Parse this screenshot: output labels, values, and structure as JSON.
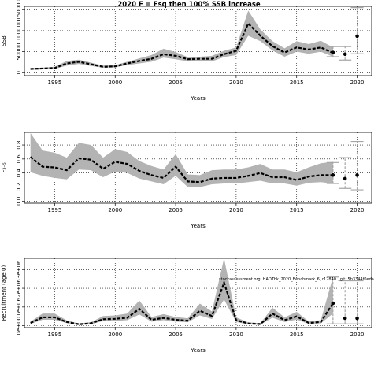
{
  "figure": {
    "title": "2020 F = Fsq then 100% SSB increase",
    "watermark": "stockassessment.org, HADTbk_2020_Benchmark_6, r12840 , git: 5b3344f0eda"
  },
  "colors": {
    "band": "#b3b3b3",
    "line": "#000000",
    "grid": "#000000",
    "forecast_bar": "#a6a6a6",
    "point": "#000000"
  },
  "chart_data": [
    {
      "type": "line",
      "name": "ssb",
      "ylabel": "SSB",
      "xlabel": "Years",
      "xlim": [
        1992.5,
        2021.2
      ],
      "ylim": [
        -7000,
        158000
      ],
      "xticks": [
        1995,
        2000,
        2005,
        2010,
        2015,
        2020
      ],
      "yticks": [
        0,
        50000,
        100000,
        150000
      ],
      "ytick_labels": [
        "0",
        "50000",
        "100000",
        "150000"
      ],
      "grid": true,
      "years": [
        1993,
        1994,
        1995,
        1996,
        1997,
        1998,
        1999,
        2000,
        2001,
        2002,
        2003,
        2004,
        2005,
        2006,
        2007,
        2008,
        2009,
        2010,
        2011,
        2012,
        2013,
        2014,
        2015,
        2016,
        2017,
        2018
      ],
      "estimate": [
        9000,
        10000,
        11000,
        22000,
        26000,
        20000,
        14000,
        15000,
        22000,
        28000,
        33000,
        44000,
        40000,
        32000,
        33000,
        33000,
        44000,
        52000,
        117000,
        88000,
        63000,
        48000,
        60000,
        55000,
        60000,
        47000
      ],
      "lower": [
        7000,
        8000,
        9000,
        17000,
        21000,
        16000,
        12000,
        13000,
        18000,
        22000,
        26000,
        36000,
        32000,
        27000,
        27000,
        27000,
        37000,
        42000,
        88000,
        75000,
        53000,
        38000,
        50000,
        45000,
        50000,
        38000
      ],
      "upper": [
        11000,
        12000,
        14000,
        28000,
        31000,
        24000,
        17000,
        18000,
        26000,
        34000,
        42000,
        57000,
        49000,
        37000,
        38000,
        40000,
        52000,
        60000,
        148000,
        103000,
        75000,
        58000,
        75000,
        68000,
        76000,
        60000
      ],
      "forecast": [
        {
          "year": 2018,
          "value": 48000,
          "low": 38000,
          "high": 62000
        },
        {
          "year": 2019,
          "value": 44000,
          "low": 30000,
          "high": 62000
        },
        {
          "year": 2020,
          "value": 87000,
          "low": 45000,
          "high": 155000
        }
      ]
    },
    {
      "type": "line",
      "name": "fbar",
      "ylabel": "F₃₋₅",
      "xlabel": "Years",
      "xlim": [
        1992.5,
        2021.2
      ],
      "ylim": [
        -0.03,
        0.98
      ],
      "xticks": [
        1995,
        2000,
        2005,
        2010,
        2015,
        2020
      ],
      "yticks": [
        0.0,
        0.2,
        0.4,
        0.6,
        0.8
      ],
      "ytick_labels": [
        "0.0",
        "0.2",
        "0.4",
        "0.6",
        "0.8"
      ],
      "grid": true,
      "years": [
        1993,
        1994,
        1995,
        1996,
        1997,
        1998,
        1999,
        2000,
        2001,
        2002,
        2003,
        2004,
        2005,
        2006,
        2007,
        2008,
        2009,
        2010,
        2011,
        2012,
        2013,
        2014,
        2015,
        2016,
        2017,
        2018
      ],
      "estimate": [
        0.63,
        0.49,
        0.48,
        0.44,
        0.61,
        0.59,
        0.46,
        0.56,
        0.53,
        0.43,
        0.37,
        0.33,
        0.49,
        0.28,
        0.27,
        0.32,
        0.33,
        0.33,
        0.36,
        0.4,
        0.34,
        0.34,
        0.3,
        0.35,
        0.37,
        0.37
      ],
      "lower": [
        0.41,
        0.36,
        0.33,
        0.31,
        0.45,
        0.44,
        0.34,
        0.42,
        0.4,
        0.32,
        0.28,
        0.24,
        0.36,
        0.2,
        0.2,
        0.24,
        0.25,
        0.25,
        0.27,
        0.29,
        0.25,
        0.25,
        0.22,
        0.26,
        0.27,
        0.25
      ],
      "upper": [
        0.97,
        0.72,
        0.69,
        0.62,
        0.83,
        0.8,
        0.62,
        0.74,
        0.7,
        0.57,
        0.5,
        0.45,
        0.67,
        0.38,
        0.37,
        0.44,
        0.45,
        0.45,
        0.48,
        0.53,
        0.45,
        0.45,
        0.41,
        0.48,
        0.54,
        0.56
      ],
      "forecast": [
        {
          "year": 2018,
          "value": 0.37,
          "low": 0.25,
          "high": 0.55
        },
        {
          "year": 2019,
          "value": 0.32,
          "low": 0.18,
          "high": 0.62
        },
        {
          "year": 2020,
          "value": 0.37,
          "low": 0.16,
          "high": 0.85
        }
      ]
    },
    {
      "type": "line",
      "name": "recruitment",
      "ylabel": "Recruitment (age 0)",
      "xlabel": "Years",
      "xlim": [
        1992.5,
        2021.2
      ],
      "ylim": [
        -100000.0,
        3600000.0
      ],
      "xticks": [
        1995,
        2000,
        2005,
        2010,
        2015,
        2020
      ],
      "yticks": [
        0,
        1000000.0,
        2000000.0,
        3000000.0
      ],
      "ytick_labels": [
        "0e+00",
        "1e+06",
        "2e+06",
        "3e+06"
      ],
      "grid": true,
      "years": [
        1993,
        1994,
        1995,
        1996,
        1997,
        1998,
        1999,
        2000,
        2001,
        2002,
        2003,
        2004,
        2005,
        2006,
        2007,
        2008,
        2009,
        2010,
        2011,
        2012,
        2013,
        2014,
        2015,
        2016,
        2017,
        2018
      ],
      "estimate": [
        150000,
        450000,
        450000,
        200000,
        80000,
        130000,
        350000,
        370000,
        430000,
        900000,
        320000,
        420000,
        320000,
        270000,
        800000,
        520000,
        2300000,
        300000,
        120000,
        90000,
        650000,
        300000,
        500000,
        150000,
        200000,
        1200000
      ],
      "lower": [
        100000,
        320000,
        320000,
        140000,
        50000,
        90000,
        250000,
        260000,
        300000,
        600000,
        220000,
        300000,
        220000,
        190000,
        550000,
        360000,
        1400000,
        200000,
        80000,
        60000,
        430000,
        200000,
        330000,
        100000,
        130000,
        650000
      ],
      "upper": [
        220000,
        650000,
        650000,
        290000,
        120000,
        190000,
        520000,
        550000,
        650000,
        1350000,
        470000,
        620000,
        470000,
        400000,
        1180000,
        760000,
        3600000,
        450000,
        180000,
        140000,
        960000,
        450000,
        740000,
        230000,
        300000,
        2600000
      ],
      "forecast": [
        {
          "year": 2018,
          "value": 1200000,
          "low": 100000,
          "high": 2600000
        },
        {
          "year": 2019,
          "value": 400000,
          "low": 100000,
          "high": 2400000
        },
        {
          "year": 2020,
          "value": 400000,
          "low": 100000,
          "high": 2400000
        }
      ]
    }
  ]
}
